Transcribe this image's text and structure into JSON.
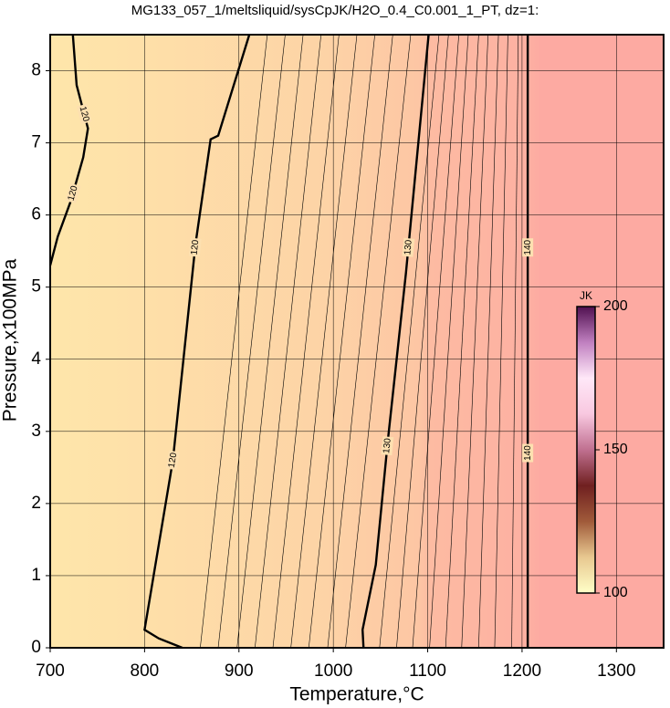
{
  "chart_data": {
    "type": "contour",
    "title": "MG133_057_1/meltsliquid/sysCpJK/H2O_0.4_C0.001_1_PT, dz=1:",
    "xlabel": "Temperature,°C",
    "ylabel": "Pressure,x100MPa",
    "xlim": [
      700,
      1350
    ],
    "ylim": [
      0,
      8.5
    ],
    "xticks": [
      700,
      800,
      900,
      1000,
      1100,
      1200,
      1300
    ],
    "yticks": [
      0,
      1,
      2,
      3,
      4,
      5,
      6,
      7,
      8
    ],
    "grid": true,
    "contours": [
      {
        "level": 120,
        "x": [
          724,
          728,
          740,
          735,
          722,
          708,
          700
        ],
        "y": [
          8.5,
          7.8,
          7.2,
          6.8,
          6.2,
          5.7,
          5.3
        ]
      },
      {
        "level": 120,
        "x": [
          840,
          815,
          800,
          830,
          854,
          870,
          878,
          911
        ],
        "y": [
          0,
          0.13,
          0.25,
          2.6,
          5.6,
          7.05,
          7.1,
          8.5
        ]
      },
      {
        "level": 130,
        "x": [
          1032,
          1031,
          1045,
          1058,
          1077,
          1101
        ],
        "y": [
          0,
          0.25,
          1.15,
          2.9,
          5.2,
          8.5
        ]
      },
      {
        "level": 140,
        "x": [
          1206,
          1206
        ],
        "y": [
          0,
          8.5
        ]
      },
      {
        "level": 121,
        "x": [
          859,
          930
        ],
        "y": [
          0,
          8.5
        ]
      },
      {
        "level": 122,
        "x": [
          878,
          949
        ],
        "y": [
          0,
          8.5
        ]
      },
      {
        "level": 123,
        "x": [
          898,
          968
        ],
        "y": [
          0,
          8.5
        ]
      },
      {
        "level": 124,
        "x": [
          917,
          987
        ],
        "y": [
          0,
          8.5
        ]
      },
      {
        "level": 125,
        "x": [
          936,
          1006
        ],
        "y": [
          0,
          8.5
        ]
      },
      {
        "level": 126,
        "x": [
          955,
          1025
        ],
        "y": [
          0,
          8.5
        ]
      },
      {
        "level": 127,
        "x": [
          974,
          1044
        ],
        "y": [
          0,
          8.5
        ]
      },
      {
        "level": 128,
        "x": [
          994,
          1063
        ],
        "y": [
          0,
          8.5
        ]
      },
      {
        "level": 129,
        "x": [
          1013,
          1082
        ],
        "y": [
          0,
          8.5
        ]
      },
      {
        "level": 131,
        "x": [
          1049,
          1112
        ],
        "y": [
          0,
          8.5
        ]
      },
      {
        "level": 132,
        "x": [
          1067,
          1122
        ],
        "y": [
          0,
          8.5
        ]
      },
      {
        "level": 133,
        "x": [
          1084,
          1133
        ],
        "y": [
          0,
          8.5
        ]
      },
      {
        "level": 134,
        "x": [
          1102,
          1143
        ],
        "y": [
          0,
          8.5
        ]
      },
      {
        "level": 135,
        "x": [
          1119,
          1154
        ],
        "y": [
          0,
          8.5
        ]
      },
      {
        "level": 136,
        "x": [
          1136,
          1164
        ],
        "y": [
          0,
          8.5
        ]
      },
      {
        "level": 137,
        "x": [
          1154,
          1175
        ],
        "y": [
          0,
          8.5
        ]
      },
      {
        "level": 138,
        "x": [
          1171,
          1185
        ],
        "y": [
          0,
          8.5
        ]
      },
      {
        "level": 139,
        "x": [
          1189,
          1196
        ],
        "y": [
          0,
          8.5
        ]
      }
    ],
    "colorbar": {
      "label": "JK",
      "lim": [
        100,
        200
      ],
      "ticks": [
        100,
        150,
        200
      ],
      "colors": [
        "#ffffc8",
        "#e8c890",
        "#a05a3a",
        "#702020",
        "#c07090",
        "#f8c8e0",
        "#ffe8f8",
        "#c080c0",
        "#501050"
      ]
    }
  }
}
